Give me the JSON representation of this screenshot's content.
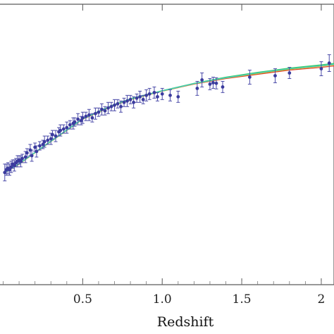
{
  "chart_data": {
    "type": "scatter",
    "title": "",
    "xlabel": "Redshift",
    "ylabel": "",
    "xlim": [
      -0.02,
      2.08
    ],
    "ylim": [
      0.0,
      1.0
    ],
    "grid": false,
    "x_ticks": [
      {
        "value": 0.5,
        "label": "0.5"
      },
      {
        "value": 1.0,
        "label": "1.0"
      },
      {
        "value": 1.5,
        "label": "1.5"
      },
      {
        "value": 2.0,
        "label": "2"
      }
    ],
    "colors": {
      "points": "#3b3b9e",
      "errorbars": "#4a4aa8",
      "fit_green": "#33cc55",
      "fit_red": "#dd4433",
      "fit_yellow": "#c8c020",
      "fit_cyan": "#44c8c8",
      "frame": "#555555"
    },
    "curves": [
      {
        "color_key": "fit_red",
        "x": [
          0.01,
          0.1,
          0.2,
          0.3,
          0.4,
          0.5,
          0.6,
          0.7,
          0.8,
          0.9,
          1.0,
          1.2,
          1.4,
          1.6,
          1.8,
          2.0,
          2.08
        ],
        "y": [
          0.4,
          0.43,
          0.47,
          0.51,
          0.55,
          0.59,
          0.615,
          0.64,
          0.66,
          0.675,
          0.69,
          0.715,
          0.735,
          0.75,
          0.765,
          0.775,
          0.78
        ]
      },
      {
        "color_key": "fit_yellow",
        "x": [
          0.01,
          0.1,
          0.2,
          0.3,
          0.4,
          0.5,
          0.6,
          0.7,
          0.8,
          0.9,
          1.0,
          1.2,
          1.4,
          1.6,
          1.8,
          2.0,
          2.08
        ],
        "y": [
          0.4,
          0.43,
          0.47,
          0.51,
          0.55,
          0.59,
          0.615,
          0.64,
          0.66,
          0.675,
          0.69,
          0.716,
          0.737,
          0.753,
          0.768,
          0.779,
          0.784
        ]
      },
      {
        "color_key": "fit_green",
        "x": [
          0.01,
          0.1,
          0.2,
          0.3,
          0.4,
          0.5,
          0.6,
          0.7,
          0.8,
          0.9,
          1.0,
          1.2,
          1.4,
          1.6,
          1.8,
          2.0,
          2.08
        ],
        "y": [
          0.4,
          0.432,
          0.472,
          0.512,
          0.552,
          0.592,
          0.618,
          0.643,
          0.663,
          0.678,
          0.692,
          0.718,
          0.74,
          0.757,
          0.772,
          0.784,
          0.789
        ]
      },
      {
        "color_key": "fit_cyan",
        "x": [
          0.01,
          0.1,
          0.2,
          0.3,
          0.4,
          0.5,
          0.6,
          0.7,
          0.8,
          0.9,
          1.0,
          1.2,
          1.4,
          1.6,
          1.8,
          2.0,
          2.08
        ],
        "y": [
          0.4,
          0.431,
          0.471,
          0.511,
          0.551,
          0.591,
          0.617,
          0.642,
          0.662,
          0.677,
          0.691,
          0.717,
          0.738,
          0.755,
          0.77,
          0.781,
          0.786
        ]
      }
    ],
    "series": [
      {
        "x": [
          0.01,
          0.02,
          0.03,
          0.04,
          0.05,
          0.06,
          0.07,
          0.08,
          0.09,
          0.1,
          0.11,
          0.12,
          0.14,
          0.15,
          0.17,
          0.18,
          0.2,
          0.21,
          0.23,
          0.25,
          0.26,
          0.28,
          0.3,
          0.31,
          0.33,
          0.35,
          0.36,
          0.38,
          0.4,
          0.42,
          0.44,
          0.45,
          0.47,
          0.49,
          0.5,
          0.52,
          0.54,
          0.56,
          0.58,
          0.6,
          0.62,
          0.64,
          0.66,
          0.68,
          0.7,
          0.72,
          0.74,
          0.76,
          0.78,
          0.8,
          0.82,
          0.84,
          0.86,
          0.88,
          0.9,
          0.92,
          0.95,
          0.97,
          1.0,
          1.05,
          1.1,
          1.22,
          1.25,
          1.3,
          1.32,
          1.34,
          1.38,
          1.55,
          1.71,
          1.8,
          2.0,
          2.05
        ],
        "y": [
          0.4,
          0.41,
          0.415,
          0.41,
          0.42,
          0.43,
          0.425,
          0.435,
          0.44,
          0.445,
          0.44,
          0.45,
          0.455,
          0.47,
          0.48,
          0.46,
          0.49,
          0.475,
          0.495,
          0.5,
          0.51,
          0.515,
          0.52,
          0.535,
          0.53,
          0.545,
          0.55,
          0.555,
          0.56,
          0.57,
          0.575,
          0.58,
          0.59,
          0.585,
          0.595,
          0.6,
          0.605,
          0.595,
          0.61,
          0.615,
          0.625,
          0.62,
          0.63,
          0.635,
          0.64,
          0.645,
          0.635,
          0.65,
          0.655,
          0.66,
          0.65,
          0.665,
          0.67,
          0.66,
          0.675,
          0.68,
          0.685,
          0.67,
          0.68,
          0.675,
          0.67,
          0.7,
          0.73,
          0.715,
          0.72,
          0.718,
          0.705,
          0.74,
          0.745,
          0.755,
          0.77,
          0.79
        ],
        "err": [
          0.03,
          0.02,
          0.02,
          0.02,
          0.02,
          0.015,
          0.02,
          0.015,
          0.02,
          0.015,
          0.02,
          0.015,
          0.02,
          0.015,
          0.02,
          0.02,
          0.015,
          0.02,
          0.015,
          0.015,
          0.02,
          0.015,
          0.02,
          0.015,
          0.02,
          0.015,
          0.02,
          0.015,
          0.02,
          0.015,
          0.02,
          0.015,
          0.02,
          0.015,
          0.02,
          0.015,
          0.02,
          0.015,
          0.02,
          0.015,
          0.02,
          0.015,
          0.02,
          0.015,
          0.02,
          0.015,
          0.02,
          0.015,
          0.02,
          0.015,
          0.02,
          0.015,
          0.02,
          0.015,
          0.02,
          0.02,
          0.02,
          0.015,
          0.02,
          0.02,
          0.02,
          0.025,
          0.025,
          0.02,
          0.02,
          0.02,
          0.02,
          0.025,
          0.025,
          0.02,
          0.025,
          0.03
        ]
      }
    ]
  }
}
